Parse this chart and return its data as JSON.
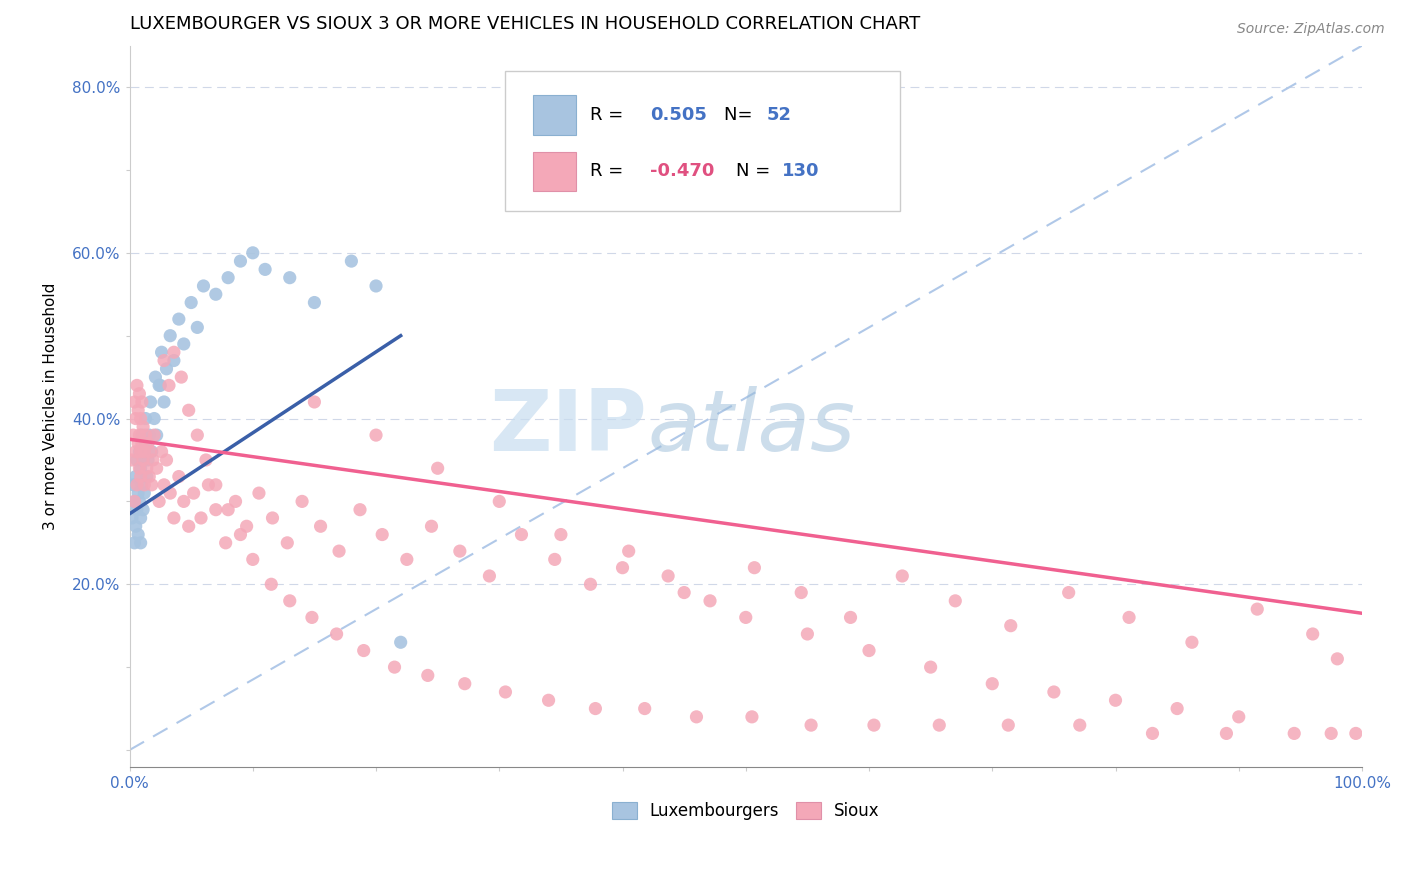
{
  "title": "LUXEMBOURGER VS SIOUX 3 OR MORE VEHICLES IN HOUSEHOLD CORRELATION CHART",
  "source_text": "Source: ZipAtlas.com",
  "ylabel": "3 or more Vehicles in Household",
  "xlim": [
    0.0,
    1.0
  ],
  "ylim": [
    -0.02,
    0.85
  ],
  "xtick_positions": [
    0.0,
    0.1,
    0.2,
    0.3,
    0.4,
    0.5,
    0.6,
    0.7,
    0.8,
    0.9,
    1.0
  ],
  "xticklabels": [
    "0.0%",
    "",
    "",
    "",
    "",
    "",
    "",
    "",
    "",
    "",
    "100.0%"
  ],
  "ytick_positions": [
    0.0,
    0.1,
    0.2,
    0.3,
    0.4,
    0.5,
    0.6,
    0.7,
    0.8
  ],
  "yticklabels": [
    "",
    "",
    "20.0%",
    "",
    "40.0%",
    "",
    "60.0%",
    "",
    "80.0%"
  ],
  "luxembourger_color": "#a8c4e0",
  "sioux_color": "#f4a8b8",
  "luxembourger_line_color": "#3a5fa8",
  "sioux_line_color": "#f06090",
  "ref_line_color": "#b0c8e8",
  "legend_R_lux": "0.505",
  "legend_N_lux": "52",
  "legend_R_sioux": "-0.470",
  "legend_N_sioux": "130",
  "watermark": "ZIPatlas",
  "watermark_color": "#c8ddf0",
  "title_fontsize": 13,
  "axis_label_fontsize": 11,
  "tick_fontsize": 11,
  "lux_trend_x0": 0.0,
  "lux_trend_y0": 0.285,
  "lux_trend_x1": 0.22,
  "lux_trend_y1": 0.5,
  "sioux_trend_x0": 0.0,
  "sioux_trend_y0": 0.375,
  "sioux_trend_x1": 1.0,
  "sioux_trend_y1": 0.165,
  "ref_line_x0": 0.0,
  "ref_line_y0": 0.0,
  "ref_line_x1": 1.0,
  "ref_line_y1": 0.85,
  "lux_x": [
    0.002,
    0.003,
    0.004,
    0.004,
    0.005,
    0.005,
    0.006,
    0.006,
    0.007,
    0.007,
    0.008,
    0.008,
    0.009,
    0.009,
    0.009,
    0.01,
    0.01,
    0.011,
    0.011,
    0.012,
    0.013,
    0.013,
    0.014,
    0.015,
    0.016,
    0.017,
    0.018,
    0.02,
    0.021,
    0.022,
    0.024,
    0.026,
    0.028,
    0.03,
    0.033,
    0.036,
    0.04,
    0.044,
    0.05,
    0.055,
    0.06,
    0.07,
    0.08,
    0.09,
    0.1,
    0.11,
    0.13,
    0.15,
    0.18,
    0.2,
    0.22,
    0.025
  ],
  "lux_y": [
    0.28,
    0.32,
    0.25,
    0.3,
    0.27,
    0.33,
    0.29,
    0.35,
    0.26,
    0.31,
    0.3,
    0.36,
    0.28,
    0.34,
    0.25,
    0.32,
    0.38,
    0.29,
    0.35,
    0.31,
    0.37,
    0.4,
    0.33,
    0.35,
    0.38,
    0.42,
    0.36,
    0.4,
    0.45,
    0.38,
    0.44,
    0.48,
    0.42,
    0.46,
    0.5,
    0.47,
    0.52,
    0.49,
    0.54,
    0.51,
    0.56,
    0.55,
    0.57,
    0.59,
    0.6,
    0.58,
    0.57,
    0.54,
    0.59,
    0.56,
    0.13,
    0.44
  ],
  "sioux_x": [
    0.002,
    0.003,
    0.004,
    0.004,
    0.005,
    0.005,
    0.006,
    0.006,
    0.007,
    0.007,
    0.008,
    0.008,
    0.008,
    0.009,
    0.009,
    0.009,
    0.01,
    0.01,
    0.011,
    0.011,
    0.012,
    0.012,
    0.013,
    0.014,
    0.015,
    0.016,
    0.017,
    0.018,
    0.019,
    0.02,
    0.022,
    0.024,
    0.026,
    0.028,
    0.03,
    0.033,
    0.036,
    0.04,
    0.044,
    0.048,
    0.052,
    0.058,
    0.064,
    0.07,
    0.078,
    0.086,
    0.095,
    0.105,
    0.116,
    0.128,
    0.14,
    0.155,
    0.17,
    0.187,
    0.205,
    0.225,
    0.245,
    0.268,
    0.292,
    0.318,
    0.345,
    0.374,
    0.405,
    0.437,
    0.471,
    0.507,
    0.545,
    0.585,
    0.627,
    0.67,
    0.715,
    0.762,
    0.811,
    0.862,
    0.915,
    0.96,
    0.98,
    0.15,
    0.2,
    0.25,
    0.3,
    0.35,
    0.4,
    0.45,
    0.5,
    0.55,
    0.6,
    0.65,
    0.7,
    0.75,
    0.8,
    0.85,
    0.9,
    0.028,
    0.032,
    0.036,
    0.042,
    0.048,
    0.055,
    0.062,
    0.07,
    0.08,
    0.09,
    0.1,
    0.115,
    0.13,
    0.148,
    0.168,
    0.19,
    0.215,
    0.242,
    0.272,
    0.305,
    0.34,
    0.378,
    0.418,
    0.46,
    0.505,
    0.553,
    0.604,
    0.657,
    0.713,
    0.771,
    0.83,
    0.89,
    0.945,
    0.975,
    0.995
  ],
  "sioux_y": [
    0.35,
    0.38,
    0.3,
    0.42,
    0.36,
    0.4,
    0.32,
    0.44,
    0.37,
    0.41,
    0.34,
    0.38,
    0.43,
    0.36,
    0.4,
    0.33,
    0.37,
    0.42,
    0.35,
    0.39,
    0.32,
    0.36,
    0.38,
    0.34,
    0.37,
    0.33,
    0.36,
    0.32,
    0.35,
    0.38,
    0.34,
    0.3,
    0.36,
    0.32,
    0.35,
    0.31,
    0.28,
    0.33,
    0.3,
    0.27,
    0.31,
    0.28,
    0.32,
    0.29,
    0.25,
    0.3,
    0.27,
    0.31,
    0.28,
    0.25,
    0.3,
    0.27,
    0.24,
    0.29,
    0.26,
    0.23,
    0.27,
    0.24,
    0.21,
    0.26,
    0.23,
    0.2,
    0.24,
    0.21,
    0.18,
    0.22,
    0.19,
    0.16,
    0.21,
    0.18,
    0.15,
    0.19,
    0.16,
    0.13,
    0.17,
    0.14,
    0.11,
    0.42,
    0.38,
    0.34,
    0.3,
    0.26,
    0.22,
    0.19,
    0.16,
    0.14,
    0.12,
    0.1,
    0.08,
    0.07,
    0.06,
    0.05,
    0.04,
    0.47,
    0.44,
    0.48,
    0.45,
    0.41,
    0.38,
    0.35,
    0.32,
    0.29,
    0.26,
    0.23,
    0.2,
    0.18,
    0.16,
    0.14,
    0.12,
    0.1,
    0.09,
    0.08,
    0.07,
    0.06,
    0.05,
    0.05,
    0.04,
    0.04,
    0.03,
    0.03,
    0.03,
    0.03,
    0.03,
    0.02,
    0.02,
    0.02,
    0.02,
    0.02
  ]
}
